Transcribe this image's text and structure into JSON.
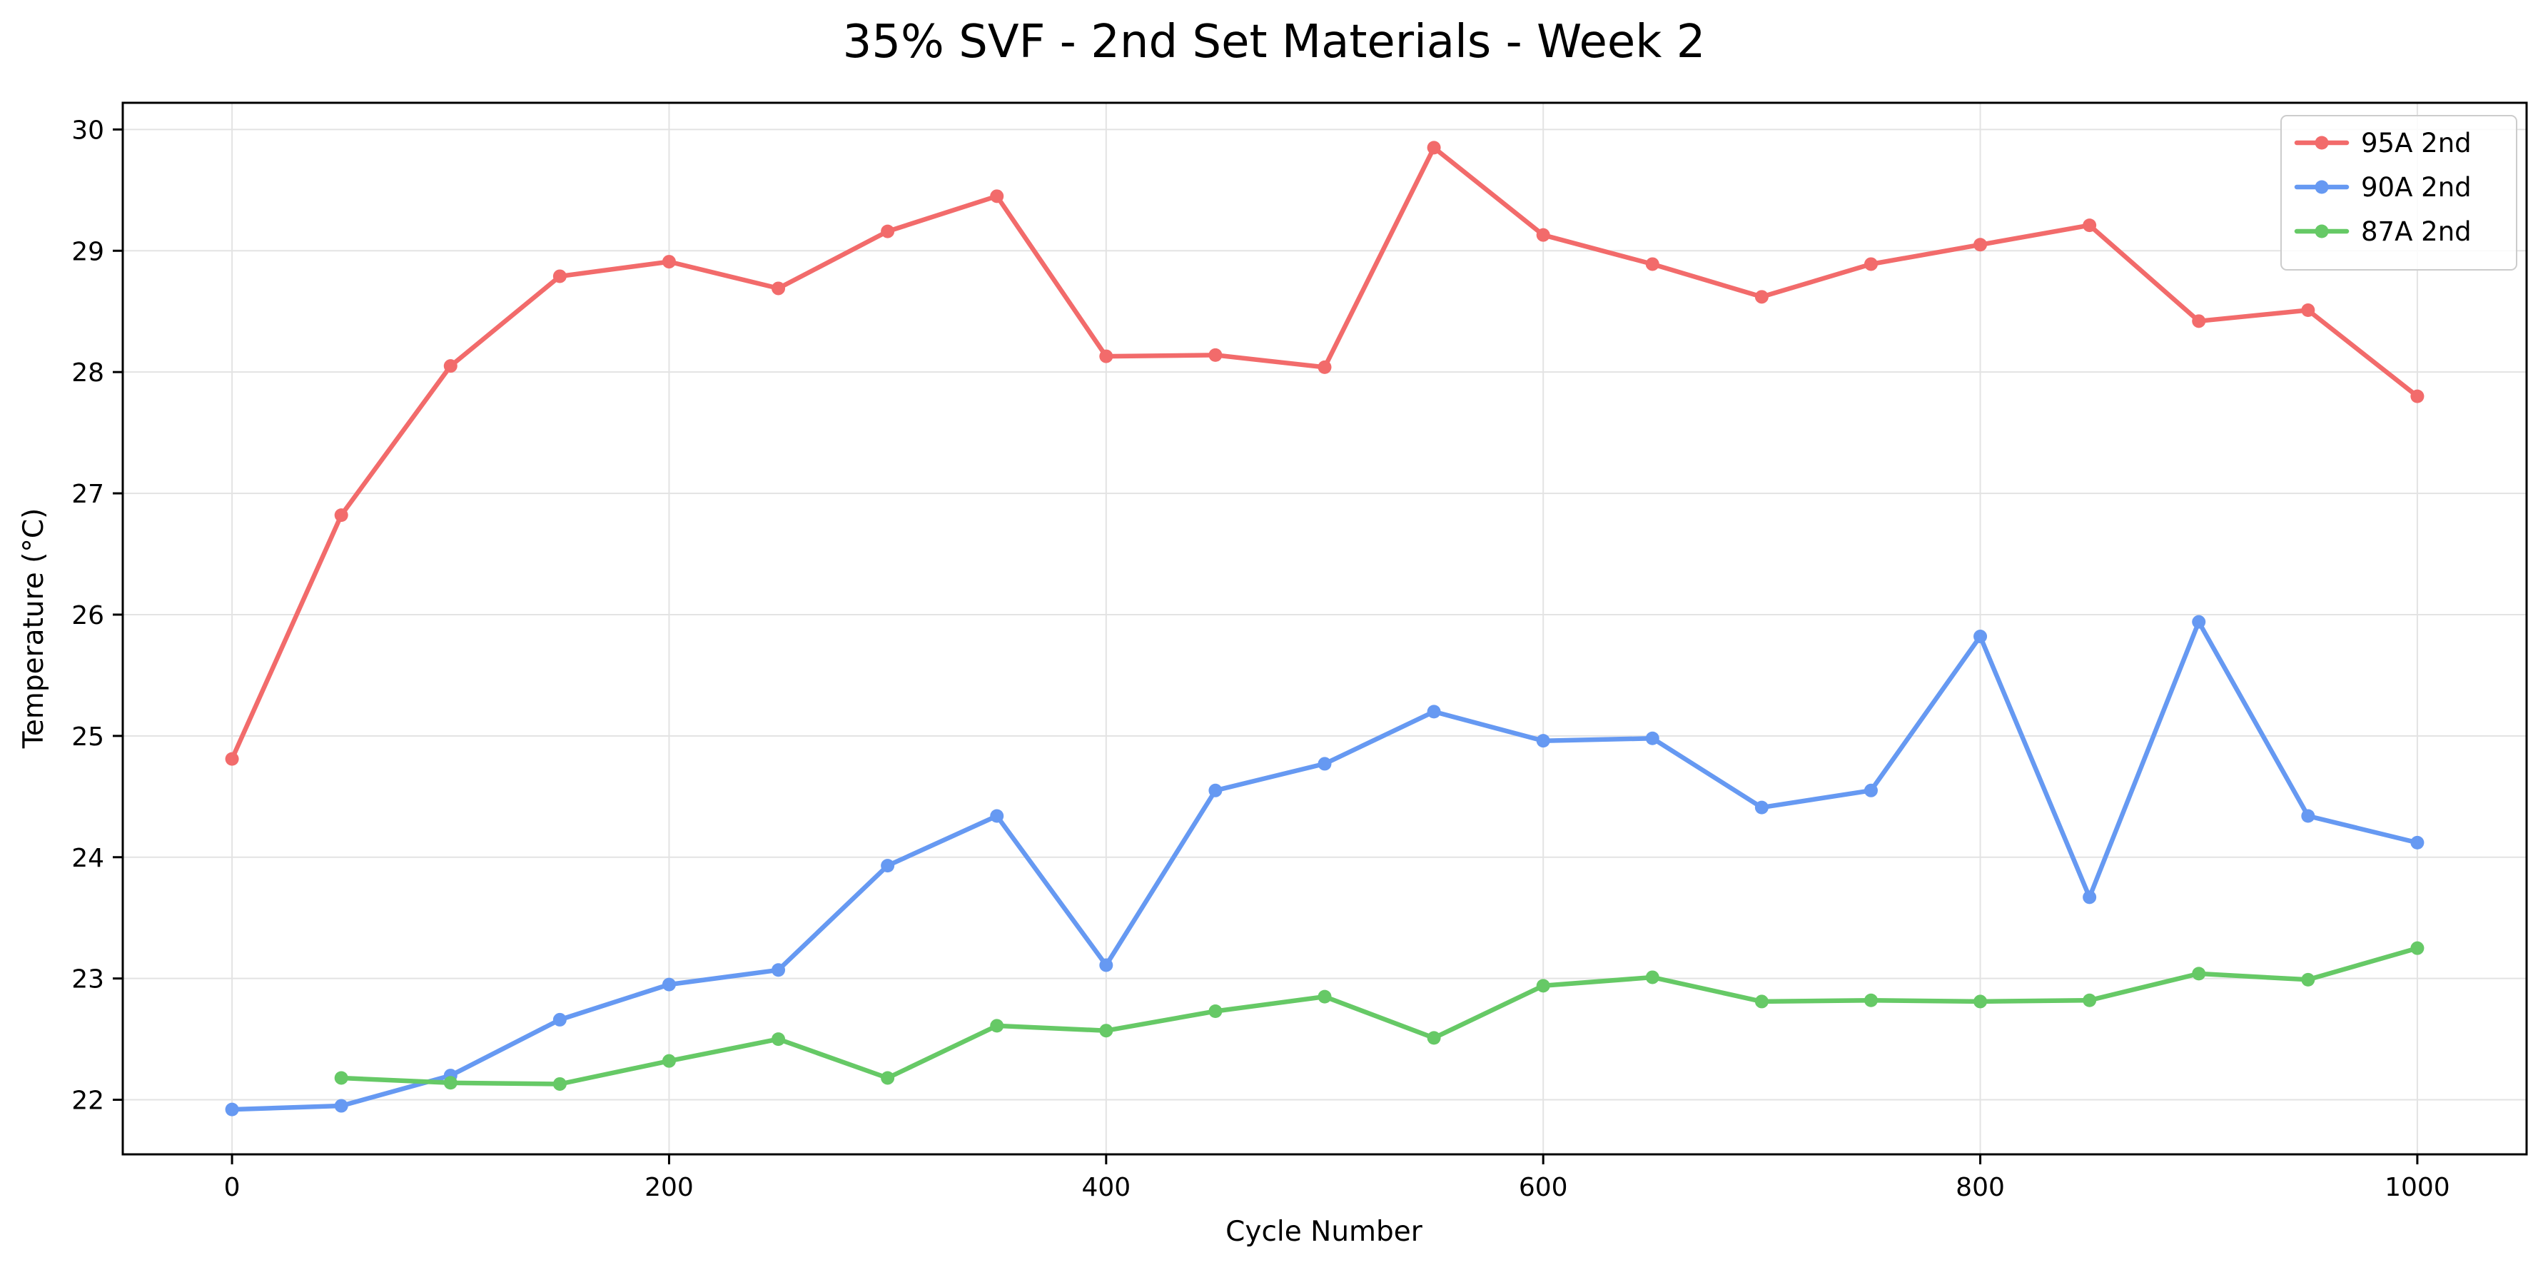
{
  "chart_data": {
    "type": "line",
    "title": "35% SVF - 2nd Set Materials - Week 2",
    "xlabel": "Cycle Number",
    "ylabel": "Temperature (°C)",
    "xlim": [
      -50,
      1050
    ],
    "ylim": [
      21.55,
      30.22
    ],
    "xticks": [
      0,
      200,
      400,
      600,
      800,
      1000
    ],
    "yticks": [
      22,
      23,
      24,
      25,
      26,
      27,
      28,
      29,
      30
    ],
    "grid": true,
    "legend_position": "top-right",
    "series": [
      {
        "name": "95A 2nd",
        "color": "#f26b6b",
        "x": [
          0,
          50,
          100,
          150,
          200,
          250,
          300,
          350,
          400,
          450,
          500,
          550,
          600,
          650,
          700,
          750,
          800,
          850,
          900,
          950,
          1000
        ],
        "y": [
          24.81,
          26.82,
          28.05,
          28.79,
          28.91,
          28.69,
          29.16,
          29.45,
          28.13,
          28.14,
          28.04,
          29.85,
          29.13,
          28.89,
          28.62,
          28.89,
          29.05,
          29.21,
          28.42,
          28.51,
          27.8
        ]
      },
      {
        "name": "90A 2nd",
        "color": "#6699f2",
        "x": [
          0,
          50,
          100,
          150,
          200,
          250,
          300,
          350,
          400,
          450,
          500,
          550,
          600,
          650,
          700,
          750,
          800,
          850,
          900,
          950,
          1000
        ],
        "y": [
          21.92,
          21.95,
          22.2,
          22.66,
          22.95,
          23.07,
          23.93,
          24.34,
          23.11,
          24.55,
          24.77,
          25.2,
          24.96,
          24.98,
          24.41,
          24.55,
          25.82,
          23.67,
          25.94,
          24.34,
          24.12
        ]
      },
      {
        "name": "87A 2nd",
        "color": "#66c966",
        "x": [
          50,
          100,
          150,
          200,
          250,
          300,
          350,
          400,
          450,
          500,
          550,
          600,
          650,
          700,
          750,
          800,
          850,
          900,
          950,
          1000
        ],
        "y": [
          22.18,
          22.14,
          22.13,
          22.32,
          22.5,
          22.18,
          22.61,
          22.57,
          22.73,
          22.85,
          22.51,
          22.94,
          23.01,
          22.81,
          22.82,
          22.81,
          22.82,
          23.04,
          22.99,
          23.25
        ]
      }
    ]
  }
}
